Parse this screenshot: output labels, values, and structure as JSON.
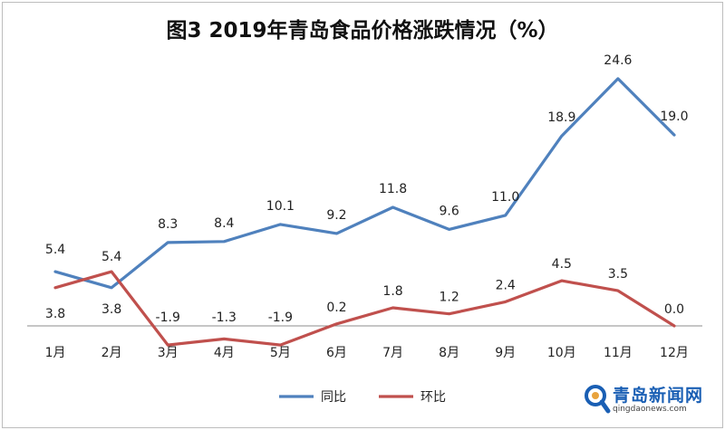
{
  "chart_data": {
    "type": "line",
    "title": "图3  2019年青岛食品价格涨跌情况（%）",
    "categories": [
      "1月",
      "2月",
      "3月",
      "4月",
      "5月",
      "6月",
      "7月",
      "8月",
      "9月",
      "10月",
      "11月",
      "12月"
    ],
    "series": [
      {
        "name": "同比",
        "color": "#4f81bd",
        "values": [
          5.4,
          3.8,
          8.3,
          8.4,
          10.1,
          9.2,
          11.8,
          9.6,
          11.0,
          18.9,
          24.6,
          19.0
        ],
        "labels": [
          "5.4",
          "3.8",
          "8.3",
          "8.4",
          "10.1",
          "9.2",
          "11.8",
          "9.6",
          "11.0",
          "18.9",
          "24.6",
          "19.0"
        ]
      },
      {
        "name": "环比",
        "color": "#c0504d",
        "values": [
          3.8,
          5.4,
          -1.9,
          -1.3,
          -1.9,
          0.2,
          1.8,
          1.2,
          2.4,
          4.5,
          3.5,
          0.0
        ],
        "labels": [
          "3.8",
          "5.4",
          "-1.9",
          "-1.3",
          "-1.9",
          "0.2",
          "1.8",
          "1.2",
          "2.4",
          "4.5",
          "3.5",
          "0.0"
        ]
      }
    ],
    "ylim": [
      -2.5,
      26
    ],
    "grid": false,
    "legend_position": "bottom"
  },
  "watermark": {
    "name": "青岛新闻网",
    "url": "qingdaonews.com"
  }
}
